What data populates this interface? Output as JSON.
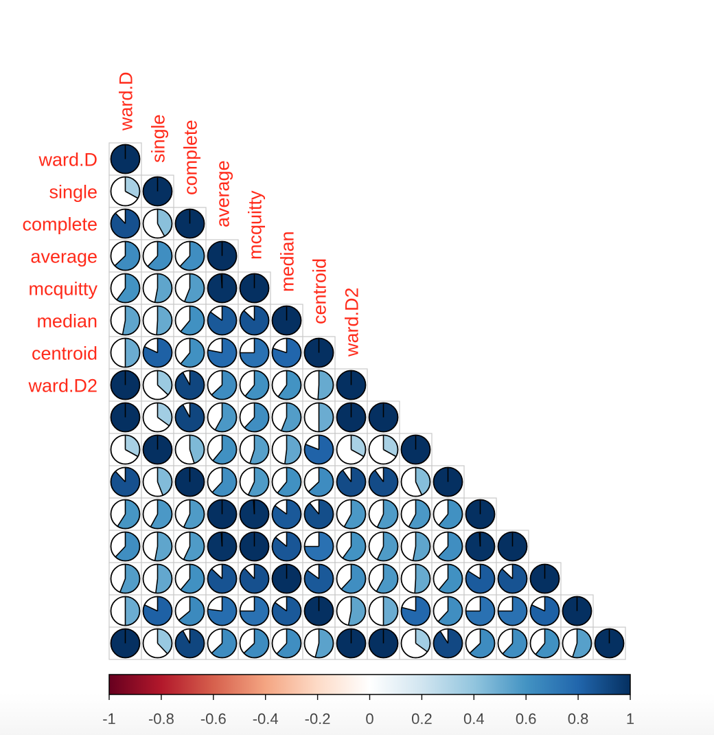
{
  "chart_data": {
    "type": "corrplot-pie-lower",
    "labels": [
      "ward.D",
      "single",
      "complete",
      "average",
      "mcquitty",
      "median",
      "centroid",
      "ward.D2",
      "",
      "",
      "",
      "",
      "",
      "",
      "",
      ""
    ],
    "row_label_color": "#ff2a1a",
    "values": [
      [
        1.0
      ],
      [
        0.33,
        1.0
      ],
      [
        0.88,
        0.42,
        1.0
      ],
      [
        0.63,
        0.62,
        0.62,
        1.0
      ],
      [
        0.6,
        0.53,
        0.56,
        0.99,
        1.0
      ],
      [
        0.53,
        0.51,
        0.61,
        0.85,
        0.87,
        1.0
      ],
      [
        0.5,
        0.82,
        0.61,
        0.78,
        0.75,
        0.8,
        1.0
      ],
      [
        1.0,
        0.37,
        0.92,
        0.63,
        0.61,
        0.6,
        0.51,
        1.0
      ],
      [
        1.0,
        0.35,
        0.92,
        0.58,
        0.62,
        0.56,
        0.5,
        1.0,
        1.0
      ],
      [
        0.33,
        1.0,
        0.45,
        0.61,
        0.55,
        0.52,
        0.81,
        0.33,
        0.33,
        1.0
      ],
      [
        0.88,
        0.44,
        1.0,
        0.62,
        0.57,
        0.61,
        0.63,
        0.9,
        0.9,
        0.43,
        1.0
      ],
      [
        0.59,
        0.58,
        0.57,
        1.0,
        0.99,
        0.85,
        0.89,
        0.58,
        0.57,
        0.58,
        0.61,
        1.0
      ],
      [
        0.62,
        0.53,
        0.57,
        0.99,
        1.0,
        0.86,
        0.75,
        0.6,
        0.57,
        0.53,
        0.62,
        0.99,
        1.0
      ],
      [
        0.56,
        0.52,
        0.61,
        0.87,
        0.88,
        1.0,
        0.85,
        0.62,
        0.58,
        0.51,
        0.61,
        0.84,
        0.87,
        1.0
      ],
      [
        0.5,
        0.82,
        0.64,
        0.77,
        0.75,
        0.85,
        1.0,
        0.53,
        0.5,
        0.79,
        0.62,
        0.75,
        0.75,
        0.82,
        1.0
      ],
      [
        1.0,
        0.38,
        0.92,
        0.63,
        0.63,
        0.62,
        0.54,
        1.0,
        1.0,
        0.35,
        0.91,
        0.63,
        0.62,
        0.61,
        0.55,
        1.0
      ]
    ],
    "colorbar": {
      "range": [
        -1,
        1
      ],
      "ticks": [
        "-1",
        "-0.8",
        "-0.6",
        "-0.4",
        "-0.2",
        "0",
        "0.2",
        "0.4",
        "0.6",
        "0.8",
        "1"
      ],
      "stops": [
        "#67001f",
        "#b2182b",
        "#d6604d",
        "#f4a582",
        "#fddbc7",
        "#ffffff",
        "#d1e5f0",
        "#92c5de",
        "#4393c3",
        "#2166ac",
        "#053061"
      ]
    }
  }
}
